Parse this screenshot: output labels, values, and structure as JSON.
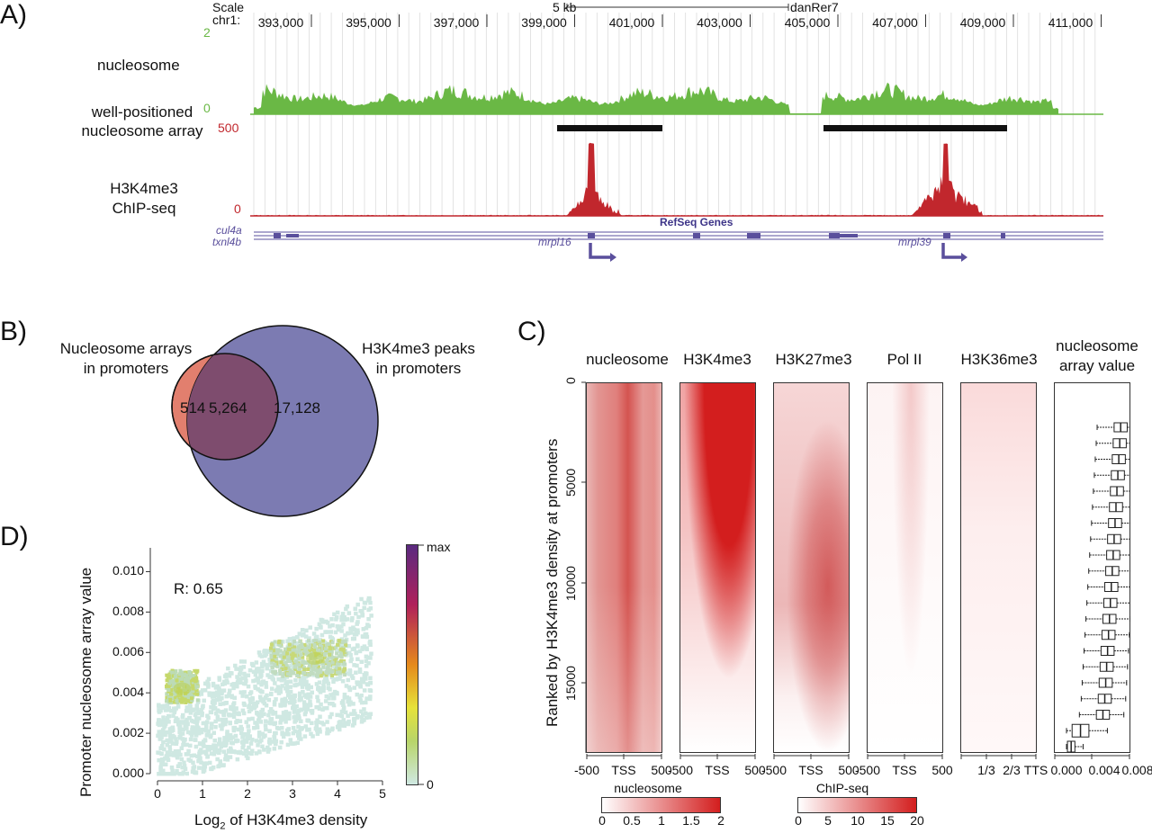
{
  "panels": {
    "a": "A)",
    "b": "B)",
    "c": "C)",
    "d": "D)"
  },
  "panel_a": {
    "scale_label": "Scale",
    "chr_label": "chr1:",
    "scale_bar": "5 kb",
    "genome": "danRer7",
    "coords": [
      "393,000",
      "395,000",
      "397,000",
      "399,000",
      "401,000",
      "403,000",
      "405,000",
      "407,000",
      "409,000",
      "411,000"
    ],
    "nucleosome_track": "nucleosome",
    "nuc_max": "2",
    "nuc_min": "0",
    "array_track_line1": "well-positioned",
    "array_track_line2": "nucleosome array",
    "h3_max": "500",
    "h3_min": "0",
    "h3_track_line1": "H3K4me3",
    "h3_track_line2": "ChIP-seq",
    "refseq": "RefSeq Genes",
    "genes": [
      "cul4a",
      "txnl4b",
      "mrpl16",
      "mrpl39"
    ],
    "colors": {
      "nucleosome": "#6ab845",
      "h3k4me3": "#c1272d",
      "genes": "#5a4f9c"
    }
  },
  "panel_b": {
    "left_title_line1": "Nucleosome arrays",
    "left_title_line2": "in promoters",
    "right_title_line1": "H3K4me3 peaks",
    "right_title_line2": "in promoters",
    "left_only": "514",
    "overlap": "5,264",
    "right_only": "17,128",
    "colors": {
      "left": "#e27f6e",
      "right": "#7c7bb2",
      "overlap": "#7e4c6e"
    }
  },
  "panel_c": {
    "heatmaps": [
      "nucleosome",
      "H3K4me3",
      "H3K27me3",
      "Pol II",
      "H3K36me3"
    ],
    "box_title_line1": "nucleosome",
    "box_title_line2": "array value",
    "ylabel": "Ranked by H3K4me3 density at promoters",
    "yticks": [
      "0",
      "5000",
      "10000",
      "15000"
    ],
    "xticks_tss": [
      "-500",
      "TSS",
      "500"
    ],
    "xticks_body": [
      "1/3",
      "2/3",
      "TTS"
    ],
    "xticks_box": [
      "0.000",
      "0.004",
      "0.008"
    ],
    "box_medians": [
      0.0058,
      0.0057,
      0.0056,
      0.0055,
      0.0054,
      0.0053,
      0.0052,
      0.0051,
      0.005,
      0.0049,
      0.0048,
      0.0047,
      0.0046,
      0.0045,
      0.0044,
      0.0043,
      0.0042,
      0.0041,
      0.0039,
      0.0015,
      0.0005
    ],
    "legend_nuc_title": "nucleosome",
    "legend_nuc_ticks": [
      "0",
      "0.5",
      "1",
      "1.5",
      "2"
    ],
    "legend_chip_title": "ChIP-seq",
    "legend_chip_ticks": [
      "0",
      "5",
      "10",
      "15",
      "20"
    ]
  },
  "panel_d": {
    "ylabel": "Promoter nucleosome array value",
    "xlabel_pre": "Log",
    "xlabel_sub": "2",
    "xlabel_post": " of H3K4me3 density",
    "yticks": [
      "0.000",
      "0.002",
      "0.004",
      "0.006",
      "0.008",
      "0.010"
    ],
    "xticks": [
      "0",
      "1",
      "2",
      "3",
      "4",
      "5"
    ],
    "r_label": "R: 0.65",
    "cbar_max": "max",
    "cbar_min": "0"
  },
  "chart_data": {
    "type": "scatter",
    "title": "",
    "xlabel": "Log2 of H3K4me3 density",
    "ylabel": "Promoter nucleosome array value",
    "xlim": [
      0,
      5
    ],
    "ylim": [
      0,
      0.011
    ],
    "annotation": "R: 0.65",
    "density_centers": [
      {
        "x": 0.55,
        "y": 0.0042
      },
      {
        "x": 3.5,
        "y": 0.0057
      }
    ]
  }
}
